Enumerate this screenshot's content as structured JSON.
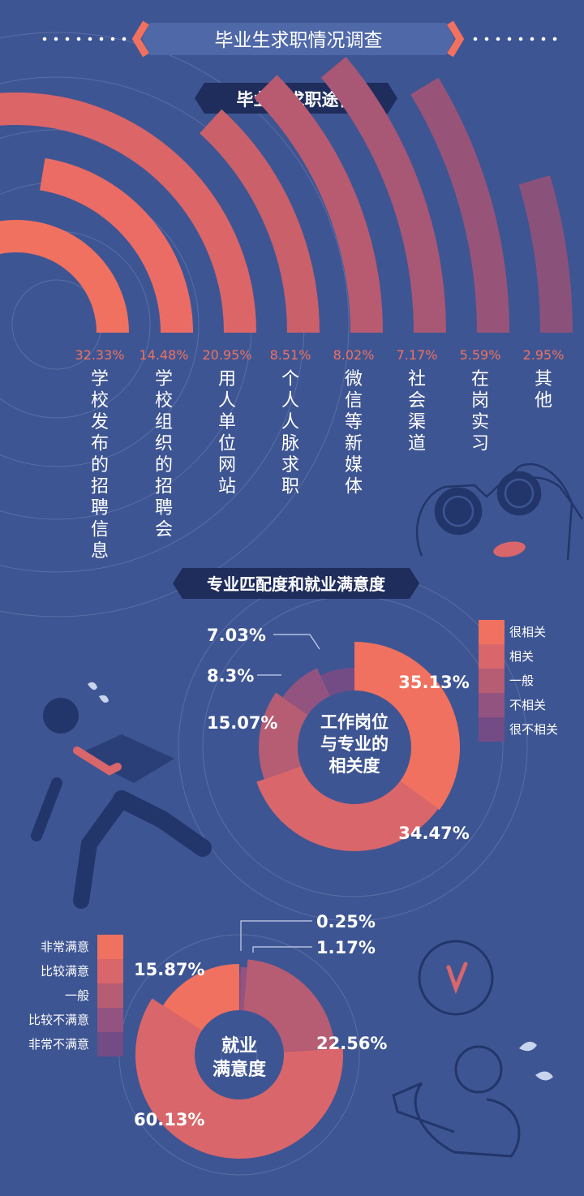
{
  "header": {
    "title": "毕业生求职情况调查"
  },
  "colors": {
    "background": "#3e5593",
    "banner": "#4f68a8",
    "dark_label": "#1f2d5c",
    "accent": "#f0715f",
    "text": "#ffffff",
    "pct_text": "#f0715f",
    "line_art": "#22366b"
  },
  "section1": {
    "title": "毕业生求职途径"
  },
  "section2": {
    "title": "专业匹配度和就业满意度"
  },
  "chart_data": [
    {
      "type": "bar",
      "categories": [
        "学校发布的招聘信息",
        "学校组织的招聘会",
        "用人单位网站",
        "个人人脉求职",
        "微信等新媒体",
        "社会渠道",
        "在岗实习",
        "其他"
      ],
      "values": [
        32.33,
        14.48,
        20.95,
        8.51,
        8.02,
        7.17,
        5.59,
        2.95
      ],
      "labels": [
        "32.33%",
        "14.48%",
        "20.95%",
        "8.51%",
        "8.02%",
        "7.17%",
        "5.59%",
        "2.95%"
      ],
      "colors": [
        "#f0715f",
        "#ea6c65",
        "#dc6567",
        "#ca606a",
        "#b85b70",
        "#a85774",
        "#985478",
        "#8a527a"
      ]
    },
    {
      "type": "pie",
      "center_label": "工作岗位与专业的相关度",
      "center_lines": [
        "工作岗位",
        "与专业的",
        "相关度"
      ],
      "categories": [
        "很相关",
        "相关",
        "一般",
        "不相关",
        "很不相关"
      ],
      "values": [
        35.13,
        34.47,
        15.07,
        8.3,
        7.03
      ],
      "labels": [
        "35.13%",
        "34.47%",
        "15.07%",
        "8.3%",
        "7.03%"
      ],
      "colors": [
        "#f0715f",
        "#d9666a",
        "#b65c73",
        "#935380",
        "#734c86"
      ]
    },
    {
      "type": "pie",
      "center_label": "就业满意度",
      "center_lines": [
        "就业",
        "满意度"
      ],
      "categories": [
        "非常满意",
        "比较满意",
        "一般",
        "比较不满意",
        "非常不满意"
      ],
      "values": [
        15.87,
        60.13,
        22.56,
        1.17,
        0.25
      ],
      "labels": [
        "15.87%",
        "60.13%",
        "22.56%",
        "1.17%",
        "0.25%"
      ],
      "colors": [
        "#f0715f",
        "#d9666a",
        "#b65c73",
        "#935380",
        "#734c86"
      ]
    }
  ]
}
